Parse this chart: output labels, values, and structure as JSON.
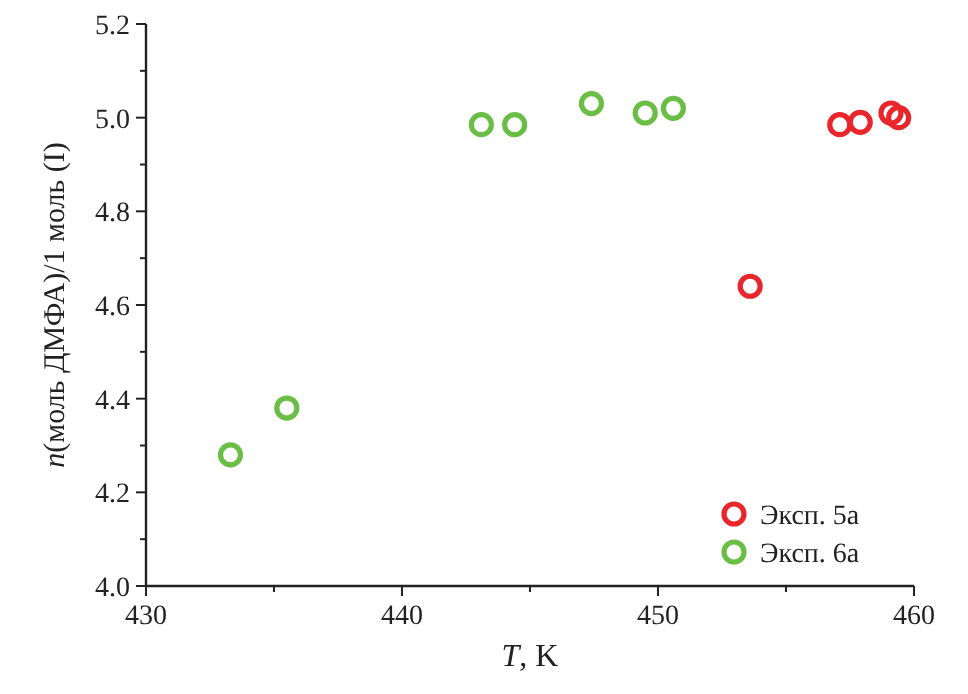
{
  "chart_data": {
    "type": "scatter",
    "xlabel": "T, K",
    "ylabel": "n(моль ДМФА)/1 моль (I)",
    "xlim": [
      430,
      460
    ],
    "ylim": [
      4.0,
      5.2
    ],
    "xticks": [
      430,
      {
        "value": 435,
        "label": null
      },
      440,
      {
        "value": 445,
        "label": null
      },
      450,
      {
        "value": 455,
        "label": null
      },
      460
    ],
    "yticks": [
      "4.0",
      {
        "value": 4.1,
        "label": null
      },
      4.2,
      {
        "value": 4.3,
        "label": null
      },
      4.4,
      {
        "value": 4.5,
        "label": null
      },
      4.6,
      {
        "value": 4.7,
        "label": null
      },
      4.8,
      {
        "value": 4.9,
        "label": null
      },
      {
        "value": 5.0,
        "label": "5.0"
      },
      {
        "value": 5.1,
        "label": null
      },
      5.2
    ],
    "grid": false,
    "legend": "bottom right",
    "marker": "circle",
    "series": [
      {
        "name": "Эксп. 5а",
        "color": "#e8262c",
        "x": [
          453.6,
          457.1,
          457.9,
          459.1,
          459.4
        ],
        "values": [
          4.64,
          4.985,
          4.99,
          5.01,
          5.0
        ]
      },
      {
        "name": "Эксп. 6а",
        "color": "#6abd45",
        "x": [
          433.3,
          435.5,
          443.1,
          444.4,
          447.4,
          449.5,
          450.6
        ],
        "values": [
          4.28,
          4.38,
          4.985,
          4.985,
          5.03,
          5.01,
          5.02
        ]
      }
    ]
  }
}
